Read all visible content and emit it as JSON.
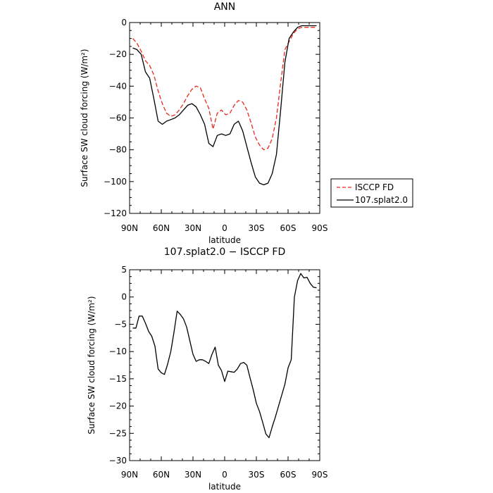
{
  "chart_data": [
    {
      "type": "line",
      "title": "ANN",
      "xlabel": "latitude",
      "ylabel": "Surface SW cloud forcing (W/m²)",
      "xlim": [
        90,
        -90
      ],
      "ylim": [
        -120,
        0
      ],
      "xticks": [
        90,
        60,
        30,
        0,
        -30,
        -60,
        -90
      ],
      "xtick_labels": [
        "90N",
        "60N",
        "30N",
        "0",
        "30S",
        "60S",
        "90S"
      ],
      "yticks": [
        -120,
        -100,
        -80,
        -60,
        -40,
        -20,
        0
      ],
      "ytick_labels": [
        "−120",
        "−100",
        "−80",
        "−60",
        "−40",
        "−20",
        "0"
      ],
      "legend": {
        "placement": "right",
        "entries": [
          {
            "label": "ISCCP FD",
            "color": "#e8291c",
            "dash": "dashed"
          },
          {
            "label": "107.splat2.0",
            "color": "#000000",
            "dash": "solid"
          }
        ]
      },
      "x": [
        87,
        83,
        79,
        75,
        71,
        67,
        63,
        59,
        55,
        51,
        47,
        43,
        39,
        35,
        31,
        27,
        23,
        19,
        15,
        11,
        7,
        3,
        -1,
        -5,
        -9,
        -13,
        -17,
        -21,
        -25,
        -29,
        -33,
        -37,
        -41,
        -45,
        -49,
        -53,
        -57,
        -61,
        -65,
        -69,
        -73,
        -77,
        -81,
        -85,
        -87
      ],
      "series": [
        {
          "name": "ISCCP FD",
          "color": "#e8291c",
          "dash": "dashed",
          "values": [
            -10,
            -13,
            -18,
            -24,
            -27,
            -33,
            -43,
            -51,
            -57,
            -59,
            -58,
            -55,
            -51,
            -46,
            -42,
            -40,
            -41,
            -48,
            -54,
            -67,
            -57,
            -55,
            -58,
            -57,
            -52,
            -49,
            -50,
            -55,
            -63,
            -72,
            -77,
            -80,
            -79,
            -73,
            -60,
            -38,
            -17,
            -12,
            -7,
            -4,
            -3,
            -3,
            -3,
            -3,
            -3
          ]
        },
        {
          "name": "107.splat2.0",
          "color": "#000000",
          "dash": "solid",
          "values": [
            -16,
            -17,
            -20,
            -31,
            -35,
            -48,
            -62,
            -64,
            -62,
            -61,
            -60,
            -58,
            -55,
            -52,
            -51,
            -53,
            -58,
            -64,
            -76,
            -78,
            -71,
            -70,
            -71,
            -70,
            -64,
            -62,
            -68,
            -78,
            -88,
            -97,
            -101,
            -102,
            -101,
            -95,
            -83,
            -55,
            -25,
            -10,
            -6,
            -3,
            -2,
            -2,
            -2,
            -2,
            -2
          ]
        }
      ]
    },
    {
      "type": "line",
      "title": "107.splat2.0 − ISCCP FD",
      "xlabel": "latitude",
      "ylabel": "Surface SW cloud forcing (W/m²)",
      "xlim": [
        90,
        -90
      ],
      "ylim": [
        -30,
        5
      ],
      "xticks": [
        90,
        60,
        30,
        0,
        -30,
        -60,
        -90
      ],
      "xtick_labels": [
        "90N",
        "60N",
        "30N",
        "0",
        "30S",
        "60S",
        "90S"
      ],
      "yticks": [
        -30,
        -25,
        -20,
        -15,
        -10,
        -5,
        0,
        5
      ],
      "ytick_labels": [
        "−30",
        "−25",
        "−20",
        "−15",
        "−10",
        "−5",
        "0",
        "5"
      ],
      "x": [
        87,
        84,
        81,
        78,
        75,
        72,
        69,
        66,
        63,
        60,
        57,
        54,
        51,
        48,
        45,
        42,
        39,
        36,
        33,
        30,
        27,
        24,
        21,
        18,
        15,
        12,
        9,
        6,
        3,
        0,
        -3,
        -6,
        -9,
        -12,
        -15,
        -18,
        -21,
        -24,
        -27,
        -30,
        -33,
        -36,
        -39,
        -42,
        -45,
        -48,
        -51,
        -54,
        -57,
        -60,
        -63,
        -66,
        -69,
        -72,
        -75,
        -78,
        -81,
        -84,
        -87
      ],
      "series": [
        {
          "name": "",
          "color": "#000000",
          "dash": "solid",
          "values": [
            -5.7,
            -5.7,
            -3.5,
            -3.5,
            -4.8,
            -6.3,
            -7.2,
            -9,
            -13.2,
            -13.9,
            -14.2,
            -12.3,
            -10,
            -6.5,
            -2.6,
            -3.2,
            -4,
            -5.5,
            -8,
            -10.5,
            -11.8,
            -11.5,
            -11.5,
            -11.8,
            -12.2,
            -10.5,
            -9.2,
            -12.5,
            -13.5,
            -15.5,
            -13.6,
            -13.7,
            -13.8,
            -13.2,
            -12.2,
            -12,
            -12.5,
            -14.8,
            -17,
            -19.5,
            -21,
            -23,
            -25.1,
            -25.8,
            -23.8,
            -22,
            -20,
            -18,
            -16,
            -13,
            -11.5,
            0,
            3,
            4.3,
            3.5,
            3.6,
            2.5,
            1.8,
            1.7
          ]
        }
      ]
    }
  ]
}
